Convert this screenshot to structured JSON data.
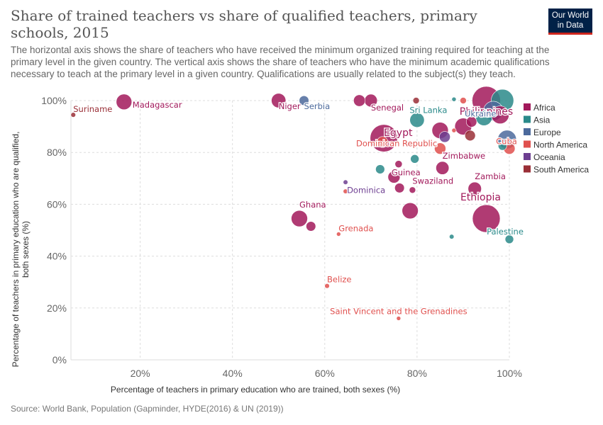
{
  "header": {
    "title": "Share of trained teachers vs share of qualified teachers, primary schools, 2015",
    "subtitle": "The horizontal axis shows the share of teachers who have received the minimum organized training required for teaching at the primary level in the given country. The vertical axis shows the share of teachers who have the minimum academic qualifications necessary to teach at the primary level in a given country. Qualifications are usually related to the subject(s) they teach.",
    "logo_line1": "Our World",
    "logo_line2": "in Data"
  },
  "footer": {
    "source": "Source: World Bank, Population (Gapminder, HYDE(2016) & UN (2019))"
  },
  "colors": {
    "Africa": "#a2195b",
    "Asia": "#2a8a8a",
    "Europe": "#4c6a9c",
    "North America": "#e0504e",
    "Oceania": "#6d3e91",
    "South America": "#9a2f37"
  },
  "chart_data": {
    "type": "scatter",
    "title": "Share of trained teachers vs share of qualified teachers, primary schools, 2015",
    "xlabel": "Percentage of teachers in primary education who are trained, both sexes (%)",
    "ylabel": "Percentage of teachers in primary education who are qualified, both sexes (%)",
    "xlim": [
      5,
      100
    ],
    "ylim": [
      0,
      100
    ],
    "xticks": [
      "20%",
      "40%",
      "60%",
      "80%",
      "100%"
    ],
    "xtick_values": [
      20,
      40,
      60,
      80,
      100
    ],
    "yticks": [
      "0%",
      "20%",
      "40%",
      "60%",
      "80%",
      "100%"
    ],
    "ytick_values": [
      0,
      20,
      40,
      60,
      80,
      100
    ],
    "grid": true,
    "legend": [
      "Africa",
      "Asia",
      "Europe",
      "North America",
      "Oceania",
      "South America"
    ],
    "legend_position": "right",
    "points": [
      {
        "label": "Suriname",
        "x": 5.5,
        "y": 94.5,
        "size": 0.6,
        "region": "South America"
      },
      {
        "label": "Madagascar",
        "x": 16.5,
        "y": 99.5,
        "size": 25,
        "region": "Africa"
      },
      {
        "label": "Niger",
        "x": 50,
        "y": 100,
        "size": 21,
        "region": "Africa"
      },
      {
        "label": "Serbia",
        "x": 55.5,
        "y": 100,
        "size": 7,
        "region": "Europe"
      },
      {
        "label": "",
        "x": 67.5,
        "y": 100,
        "size": 12,
        "region": "Africa"
      },
      {
        "label": "Senegal",
        "x": 70,
        "y": 100,
        "size": 15,
        "region": "Africa"
      },
      {
        "label": "",
        "x": 79.8,
        "y": 100,
        "size": 2,
        "region": "South America"
      },
      {
        "label": "",
        "x": 88,
        "y": 100.5,
        "size": 0.4,
        "region": "Asia"
      },
      {
        "label": "",
        "x": 90,
        "y": 100,
        "size": 2,
        "region": "North America"
      },
      {
        "label": "Philippines",
        "x": 95,
        "y": 100,
        "size": 100,
        "region": "Africa"
      },
      {
        "label": "",
        "x": 98.5,
        "y": 100,
        "size": 60,
        "region": "Asia"
      },
      {
        "label": "Sri Lanka",
        "x": 80,
        "y": 92.5,
        "size": 21,
        "region": "Asia"
      },
      {
        "label": "Egypt",
        "x": 72.8,
        "y": 85.5,
        "size": 92,
        "region": "Africa"
      },
      {
        "label": "Dominican Republic",
        "x": 72.5,
        "y": 84,
        "size": 10,
        "region": "North America"
      },
      {
        "label": "",
        "x": 85,
        "y": 88.5,
        "size": 28,
        "region": "Africa"
      },
      {
        "label": "",
        "x": 86,
        "y": 86,
        "size": 10,
        "region": "Oceania"
      },
      {
        "label": "",
        "x": 88,
        "y": 88.5,
        "size": 0.4,
        "region": "North America"
      },
      {
        "label": "",
        "x": 90,
        "y": 90,
        "size": 30,
        "region": "Africa"
      },
      {
        "label": "",
        "x": 91.8,
        "y": 91.8,
        "size": 9,
        "region": "Africa"
      },
      {
        "label": "Ukraine",
        "x": 96.5,
        "y": 96,
        "size": 42,
        "region": "Europe"
      },
      {
        "label": "",
        "x": 94.5,
        "y": 93.5,
        "size": 28,
        "region": "Asia"
      },
      {
        "label": "",
        "x": 98,
        "y": 94.5,
        "size": 35,
        "region": "Africa"
      },
      {
        "label": "",
        "x": 99.5,
        "y": 85,
        "size": 38,
        "region": "Europe"
      },
      {
        "label": "",
        "x": 98.5,
        "y": 82.5,
        "size": 5,
        "region": "Asia"
      },
      {
        "label": "Cuba",
        "x": 100,
        "y": 81.5,
        "size": 11,
        "region": "North America"
      },
      {
        "label": "",
        "x": 91.5,
        "y": 86.5,
        "size": 9,
        "region": "South America"
      },
      {
        "label": "",
        "x": 85,
        "y": 81.5,
        "size": 11,
        "region": "North America"
      },
      {
        "label": "",
        "x": 72,
        "y": 73.5,
        "size": 6,
        "region": "Asia"
      },
      {
        "label": "",
        "x": 79.5,
        "y": 77.5,
        "size": 5,
        "region": "Asia"
      },
      {
        "label": "Guinea",
        "x": 76,
        "y": 75.5,
        "size": 3,
        "region": "Africa"
      },
      {
        "label": "",
        "x": 75,
        "y": 70.5,
        "size": 13,
        "region": "Africa"
      },
      {
        "label": "Zimbabwe",
        "x": 85.5,
        "y": 74,
        "size": 16,
        "region": "Africa"
      },
      {
        "label": "Dominica",
        "x": 64.5,
        "y": 68.5,
        "size": 0.5,
        "region": "Oceania"
      },
      {
        "label": "",
        "x": 64.5,
        "y": 65,
        "size": 0.5,
        "region": "North America"
      },
      {
        "label": "Swaziland",
        "x": 79,
        "y": 65.5,
        "size": 2,
        "region": "Africa"
      },
      {
        "label": "",
        "x": 76.2,
        "y": 66.3,
        "size": 7,
        "region": "Africa"
      },
      {
        "label": "Zambia",
        "x": 92.5,
        "y": 66,
        "size": 17,
        "region": "Africa"
      },
      {
        "label": "Ghana",
        "x": 54.5,
        "y": 54.5,
        "size": 28,
        "region": "Africa"
      },
      {
        "label": "",
        "x": 57,
        "y": 51.5,
        "size": 7,
        "region": "Africa"
      },
      {
        "label": "",
        "x": 78.5,
        "y": 57.5,
        "size": 27,
        "region": "Africa"
      },
      {
        "label": "Ethiopia",
        "x": 95,
        "y": 54.5,
        "size": 95,
        "region": "Africa"
      },
      {
        "label": "Grenada",
        "x": 63,
        "y": 48.5,
        "size": 0.3,
        "region": "North America"
      },
      {
        "label": "",
        "x": 87.5,
        "y": 47.5,
        "size": 0.5,
        "region": "Asia"
      },
      {
        "label": "Palestine",
        "x": 100,
        "y": 46.5,
        "size": 5,
        "region": "Asia"
      },
      {
        "label": "Belize",
        "x": 60.5,
        "y": 28.5,
        "size": 0.6,
        "region": "North America"
      },
      {
        "label": "Saint Vincent and the Grenadines",
        "x": 76,
        "y": 16,
        "size": 0.3,
        "region": "North America"
      }
    ]
  }
}
